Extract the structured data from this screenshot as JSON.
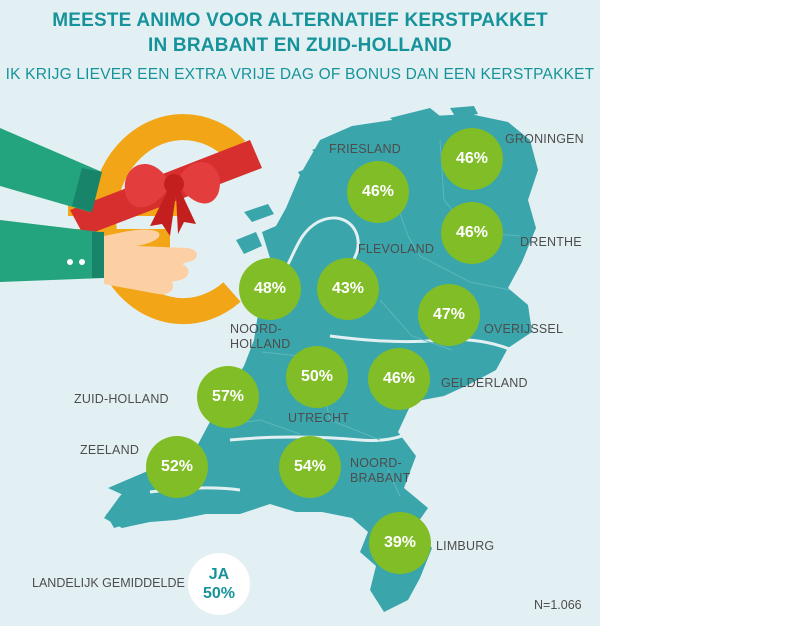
{
  "title_line1": "MEESTE ANIMO VOOR ALTERNATIEF KERSTPAKKET",
  "title_line2": "IN BRABANT EN ZUID-HOLLAND",
  "subtitle": "IK KRIJG LIEVER EEN EXTRA VRIJE DAG OF BONUS DAN EEN KERSTPAKKET",
  "colors": {
    "background": "#e3f0f3",
    "map": "#3aa5ab",
    "bubble": "#80bd26",
    "title": "#16939a"
  },
  "provinces": [
    {
      "name": "GRONINGEN",
      "value": "46%"
    },
    {
      "name": "FRIESLAND",
      "value": "46%"
    },
    {
      "name": "DRENTHE",
      "value": "46%"
    },
    {
      "name": "FLEVOLAND",
      "value": "43%"
    },
    {
      "name_line1": "NOORD-",
      "name_line2": "HOLLAND",
      "value": "48%"
    },
    {
      "name": "OVERIJSSEL",
      "value": "47%"
    },
    {
      "name": "ZUID-HOLLAND",
      "value": "57%"
    },
    {
      "name": "UTRECHT",
      "value": "50%"
    },
    {
      "name": "GELDERLAND",
      "value": "46%"
    },
    {
      "name": "ZEELAND",
      "value": "52%"
    },
    {
      "name_line1": "NOORD-",
      "name_line2": "BRABANT",
      "value": "54%"
    },
    {
      "name": "LIMBURG",
      "value": "39%"
    }
  ],
  "national_average": {
    "label": "LANDELIJK GEMIDDELDE",
    "answer": "JA",
    "value": "50%"
  },
  "sample_size": "N=1.066",
  "icons": [
    "euro-gift-illustration",
    "hand-icon",
    "netherlands-map"
  ]
}
